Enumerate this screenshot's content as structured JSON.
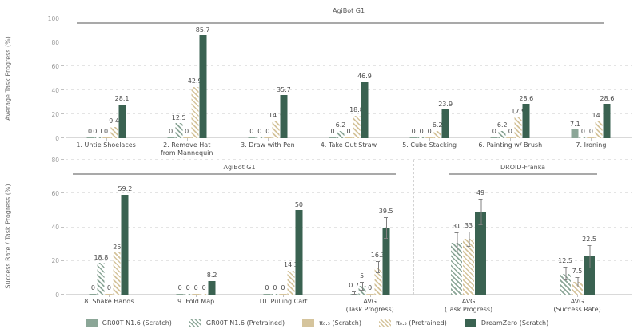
{
  "figure": {
    "title": ""
  },
  "colors": {
    "sage": "#8ba697",
    "tan": "#d5c49c",
    "dark_green": "#3a6251",
    "header_line": "#a9a9a9"
  },
  "series": [
    {
      "name": "GR00T N1.6 (Scratch)",
      "color": "#8ba697",
      "hatch": false
    },
    {
      "name": "GR00T N1.6 (Pretrained)",
      "color": "#8ba697",
      "hatch": true
    },
    {
      "name": "π₀.₅ (Scratch)",
      "color": "#d5c49c",
      "hatch": false
    },
    {
      "name": "π₀.₅ (Pretrained)",
      "color": "#d5c49c",
      "hatch": true
    },
    {
      "name": "DreamZero (Scratch)",
      "color": "#3a6251",
      "hatch": false
    }
  ],
  "chart_data": [
    {
      "type": "bar",
      "ylabel": "Average Task Progress (%)",
      "ylim": [
        0,
        100
      ],
      "yticks": [
        0,
        20,
        40,
        60,
        80,
        100
      ],
      "grid": "dashed-horizontal",
      "sections": [
        {
          "header": "AgiBot G1",
          "groups": [
            {
              "label": "1. Untie Shoelaces",
              "bars": [
                {
                  "series": 0,
                  "value": 0
                },
                {
                  "series": 1,
                  "value": 0.1
                },
                {
                  "series": 2,
                  "value": 0
                },
                {
                  "series": 3,
                  "value": 9.4
                },
                {
                  "series": 4,
                  "value": 28.1
                }
              ]
            },
            {
              "label": "2. Remove Hat\nfrom Mannequin",
              "bars": [
                {
                  "series": 0,
                  "value": 0
                },
                {
                  "series": 1,
                  "value": 12.5
                },
                {
                  "series": 2,
                  "value": 0
                },
                {
                  "series": 3,
                  "value": 42.9
                },
                {
                  "series": 4,
                  "value": 85.7
                }
              ]
            },
            {
              "label": "3. Draw with Pen",
              "bars": [
                {
                  "series": 0,
                  "value": 0
                },
                {
                  "series": 1,
                  "value": 0
                },
                {
                  "series": 2,
                  "value": 0
                },
                {
                  "series": 3,
                  "value": 14.3
                },
                {
                  "series": 4,
                  "value": 35.7
                }
              ]
            },
            {
              "label": "4. Take Out Straw",
              "bars": [
                {
                  "series": 0,
                  "value": 0
                },
                {
                  "series": 1,
                  "value": 6.2
                },
                {
                  "series": 2,
                  "value": 0
                },
                {
                  "series": 3,
                  "value": 18.8
                },
                {
                  "series": 4,
                  "value": 46.9
                }
              ]
            },
            {
              "label": "5. Cube Stacking",
              "bars": [
                {
                  "series": 0,
                  "value": 0
                },
                {
                  "series": 1,
                  "value": 0
                },
                {
                  "series": 2,
                  "value": 0
                },
                {
                  "series": 3,
                  "value": 6.2
                },
                {
                  "series": 4,
                  "value": 23.9
                }
              ]
            },
            {
              "label": "6. Painting w/ Brush",
              "bars": [
                {
                  "series": 0,
                  "value": 0
                },
                {
                  "series": 1,
                  "value": 6.2
                },
                {
                  "series": 2,
                  "value": 0
                },
                {
                  "series": 3,
                  "value": 17.9
                },
                {
                  "series": 4,
                  "value": 28.6
                }
              ]
            },
            {
              "label": "7. Ironing",
              "bars": [
                {
                  "series": 0,
                  "value": 7.1
                },
                {
                  "series": 1,
                  "value": 0
                },
                {
                  "series": 2,
                  "value": 0
                },
                {
                  "series": 3,
                  "value": 14.3
                },
                {
                  "series": 4,
                  "value": 28.6
                }
              ]
            }
          ]
        }
      ]
    },
    {
      "type": "bar",
      "ylabel": "Success Rate / Task Progress (%)",
      "ylim": [
        0,
        80
      ],
      "yticks": [
        0,
        20,
        40,
        60,
        80
      ],
      "grid": "dashed-horizontal",
      "sections": [
        {
          "header": "AgiBot G1",
          "groups": [
            {
              "label": "8. Shake Hands",
              "bars": [
                {
                  "series": 0,
                  "value": 0
                },
                {
                  "series": 1,
                  "value": 18.8
                },
                {
                  "series": 2,
                  "value": 0
                },
                {
                  "series": 3,
                  "value": 25
                },
                {
                  "series": 4,
                  "value": 59.2
                }
              ]
            },
            {
              "label": "9. Fold Map",
              "bars": [
                {
                  "series": 0,
                  "value": 0
                },
                {
                  "series": 1,
                  "value": 0
                },
                {
                  "series": 2,
                  "value": 0
                },
                {
                  "series": 3,
                  "value": 0
                },
                {
                  "series": 4,
                  "value": 8.2
                }
              ]
            },
            {
              "label": "10. Pulling Cart",
              "bars": [
                {
                  "series": 0,
                  "value": 0
                },
                {
                  "series": 1,
                  "value": 0
                },
                {
                  "series": 2,
                  "value": 0
                },
                {
                  "series": 3,
                  "value": 14.3
                },
                {
                  "series": 4,
                  "value": 50
                }
              ]
            },
            {
              "label": "AVG\n(Task Progress)",
              "bars": [
                {
                  "series": 0,
                  "value": 0.7,
                  "err": 1
                },
                {
                  "series": 1,
                  "value": 5,
                  "err": 2.5
                },
                {
                  "series": 2,
                  "value": 0
                },
                {
                  "series": 3,
                  "value": 16.3,
                  "err": 3.5
                },
                {
                  "series": 4,
                  "value": 39.5,
                  "err": 6.5
                }
              ]
            }
          ]
        },
        {
          "header": "DROID-Franka",
          "groups": [
            {
              "label": "AVG\n(Task Progress)",
              "bars": [
                {
                  "series": 1,
                  "value": 31,
                  "err": 6
                },
                {
                  "series": 3,
                  "value": 33,
                  "err": 4.5
                },
                {
                  "series": 4,
                  "value": 49,
                  "err": 8
                }
              ]
            },
            {
              "label": "AVG\n(Success Rate)",
              "bars": [
                {
                  "series": 1,
                  "value": 12.5,
                  "err": 4
                },
                {
                  "series": 3,
                  "value": 7.5,
                  "err": 3
                },
                {
                  "series": 4,
                  "value": 22.5,
                  "err": 7
                }
              ]
            }
          ]
        }
      ]
    }
  ]
}
